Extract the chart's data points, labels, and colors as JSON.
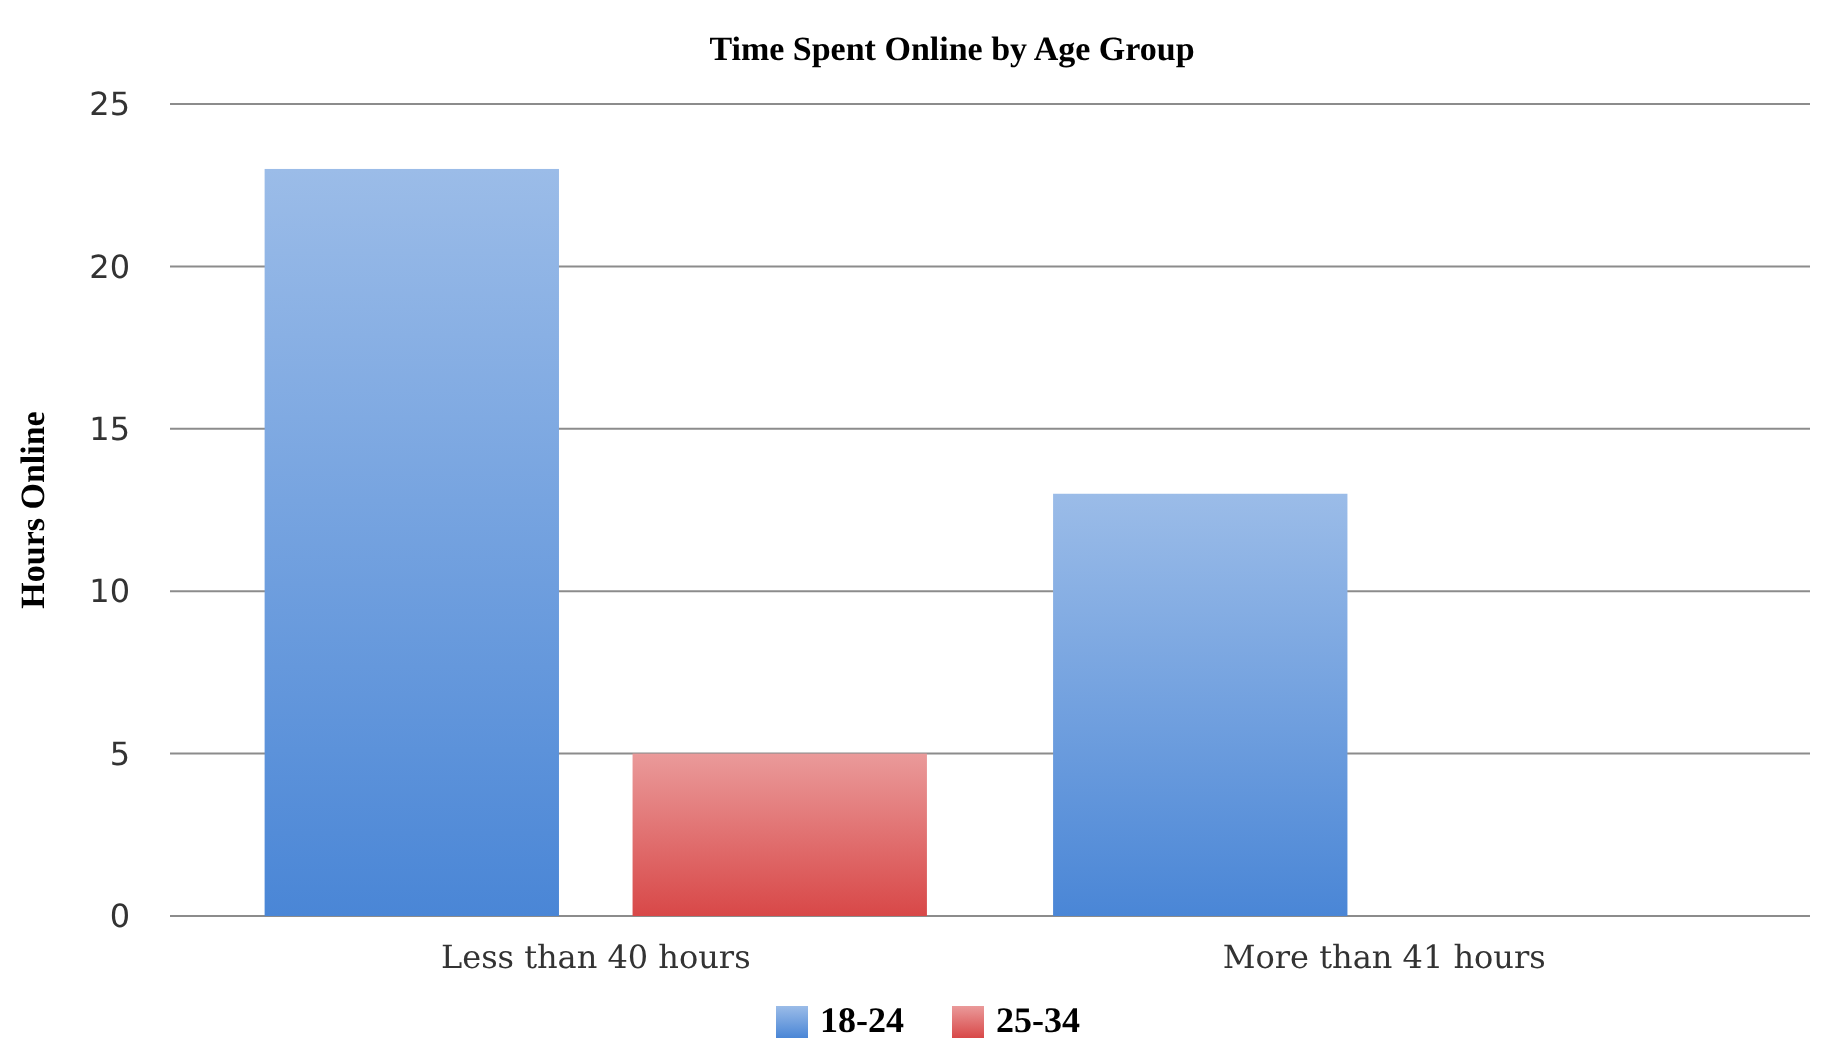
{
  "chart_data": {
    "type": "bar",
    "title": "Time Spent Online by Age Group",
    "ylabel": "Hours Online",
    "categories": [
      "Less than 40 hours",
      "More than 41 hours"
    ],
    "series": [
      {
        "name": "18-24",
        "color": "#4a86d6",
        "values": [
          23,
          13
        ]
      },
      {
        "name": "25-34",
        "color": "#d84848",
        "values": [
          5,
          null
        ]
      }
    ],
    "ylim": [
      0,
      25
    ],
    "yticks": [
      0,
      5,
      10,
      15,
      20,
      25
    ],
    "grid": "y",
    "legend": "bottom"
  }
}
